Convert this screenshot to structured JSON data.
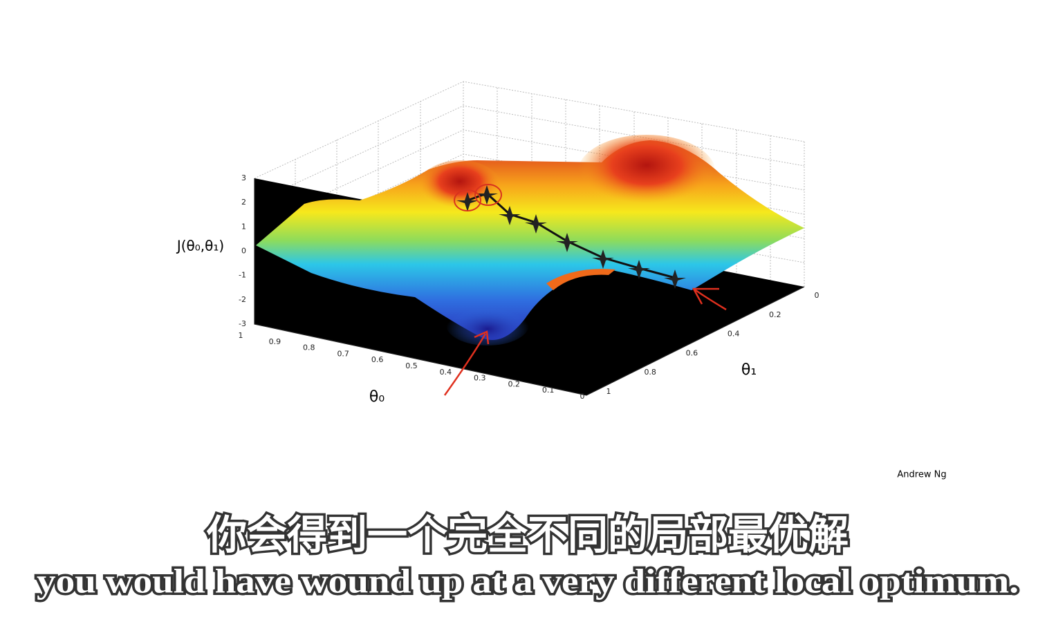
{
  "slide": {
    "plot": {
      "z_label": "J(θ₀,θ₁)",
      "x_label": "θ₀",
      "y_label": "θ₁",
      "z_ticks": [
        3,
        2,
        1,
        0,
        -1,
        -2,
        -3
      ],
      "x_ticks": [
        1,
        0.9,
        0.8,
        0.7,
        0.6,
        0.5,
        0.4,
        0.3,
        0.2,
        0.1,
        0
      ],
      "y_ticks": [
        0,
        0.2,
        0.4,
        0.6,
        0.8,
        1
      ]
    },
    "author": "Andrew Ng"
  },
  "subtitles": {
    "chinese": "你会得到一个完全不同的局部最优解",
    "english": "you would have wound up at a very different local optimum."
  }
}
